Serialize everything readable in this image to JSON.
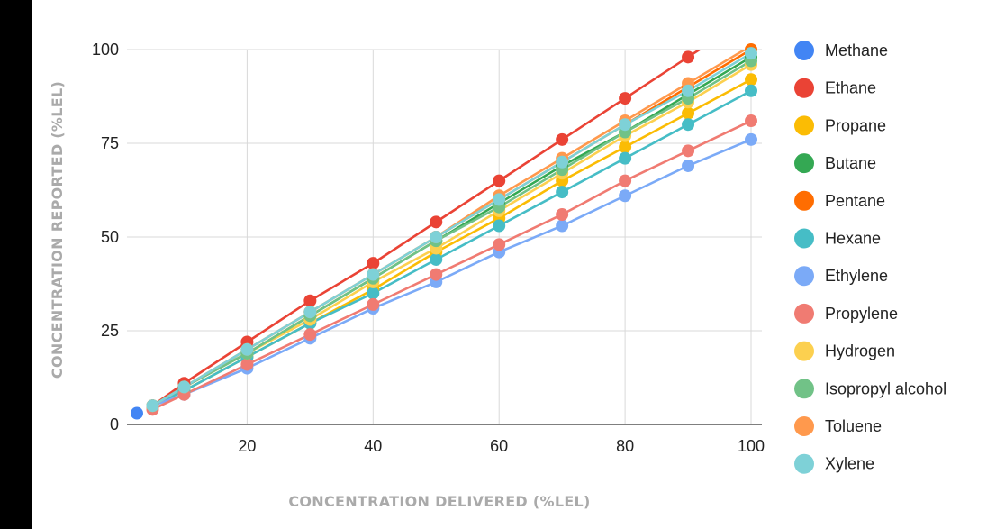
{
  "chart_data": {
    "type": "line",
    "xlabel": "CONCENTRATION DELIVERED (%LEL)",
    "ylabel": "CONCENTRATION REPORTED  (%LEL)",
    "x_ticks": [
      20,
      40,
      60,
      80,
      100
    ],
    "y_ticks": [
      0,
      25,
      50,
      75,
      100
    ],
    "xlim": [
      0,
      100
    ],
    "ylim": [
      0,
      100
    ],
    "grid": true,
    "legend_position": "right",
    "series": [
      {
        "name": "Methane",
        "color": "#4285F4",
        "x": [
          2.5
        ],
        "y": [
          3
        ]
      },
      {
        "name": "Ethane",
        "color": "#EA4335",
        "x": [
          5,
          10,
          20,
          30,
          40,
          50,
          60,
          70,
          80,
          90,
          100
        ],
        "y": [
          5,
          11,
          22,
          33,
          43,
          54,
          65,
          76,
          87,
          98,
          109
        ]
      },
      {
        "name": "Propane",
        "color": "#FBBC04",
        "x": [
          5,
          10,
          20,
          30,
          40,
          50,
          60,
          70,
          80,
          90,
          100
        ],
        "y": [
          5,
          9,
          18,
          27,
          36,
          46,
          55,
          65,
          74,
          83,
          92
        ]
      },
      {
        "name": "Butane",
        "color": "#34A853",
        "x": [
          5,
          10,
          20,
          30,
          40,
          50,
          60,
          70,
          80,
          90,
          100
        ],
        "y": [
          5,
          10,
          19,
          29,
          39,
          49,
          59,
          69,
          78,
          88,
          98
        ]
      },
      {
        "name": "Pentane",
        "color": "#FF6D01",
        "x": [
          5,
          10,
          20,
          30,
          40,
          50,
          60,
          70,
          80,
          90,
          100
        ],
        "y": [
          5,
          10,
          20,
          30,
          40,
          50,
          60,
          70,
          80,
          90,
          100
        ]
      },
      {
        "name": "Hexane",
        "color": "#46BDC6",
        "x": [
          5,
          10,
          20,
          30,
          40,
          50,
          60,
          70,
          80,
          90,
          100
        ],
        "y": [
          5,
          9,
          18,
          27,
          35,
          44,
          53,
          62,
          71,
          80,
          89
        ]
      },
      {
        "name": "Ethylene",
        "color": "#7BAAF7",
        "x": [
          5,
          10,
          20,
          30,
          40,
          50,
          60,
          70,
          80,
          90,
          100
        ],
        "y": [
          5,
          8,
          15,
          23,
          31,
          38,
          46,
          53,
          61,
          69,
          76
        ]
      },
      {
        "name": "Propylene",
        "color": "#F07B72",
        "x": [
          5,
          10,
          20,
          30,
          40,
          50,
          60,
          70,
          80,
          90,
          100
        ],
        "y": [
          4,
          8,
          16,
          24,
          32,
          40,
          48,
          56,
          65,
          73,
          81
        ]
      },
      {
        "name": "Hydrogen",
        "color": "#FCD04F",
        "x": [
          5,
          10,
          20,
          30,
          40,
          50,
          60,
          70,
          80,
          90,
          100
        ],
        "y": [
          5,
          10,
          19,
          28,
          38,
          47,
          57,
          67,
          77,
          86,
          96
        ]
      },
      {
        "name": "Isopropyl alcohol",
        "color": "#71C287",
        "x": [
          5,
          10,
          20,
          30,
          40,
          50,
          60,
          70,
          80,
          90,
          100
        ],
        "y": [
          5,
          10,
          19,
          29,
          39,
          49,
          58,
          68,
          78,
          87,
          97
        ]
      },
      {
        "name": "Toluene",
        "color": "#FF994D",
        "x": [
          5,
          10,
          20,
          30,
          40,
          50,
          60,
          70,
          80,
          90,
          100
        ],
        "y": [
          5,
          10,
          20,
          30,
          40,
          50,
          61,
          71,
          81,
          91,
          101
        ]
      },
      {
        "name": "Xylene",
        "color": "#7ED1D7",
        "x": [
          5,
          10,
          20,
          30,
          40,
          50,
          60,
          70,
          80,
          90,
          100
        ],
        "y": [
          5,
          10,
          20,
          30,
          40,
          50,
          60,
          70,
          80,
          89,
          99
        ]
      }
    ]
  }
}
